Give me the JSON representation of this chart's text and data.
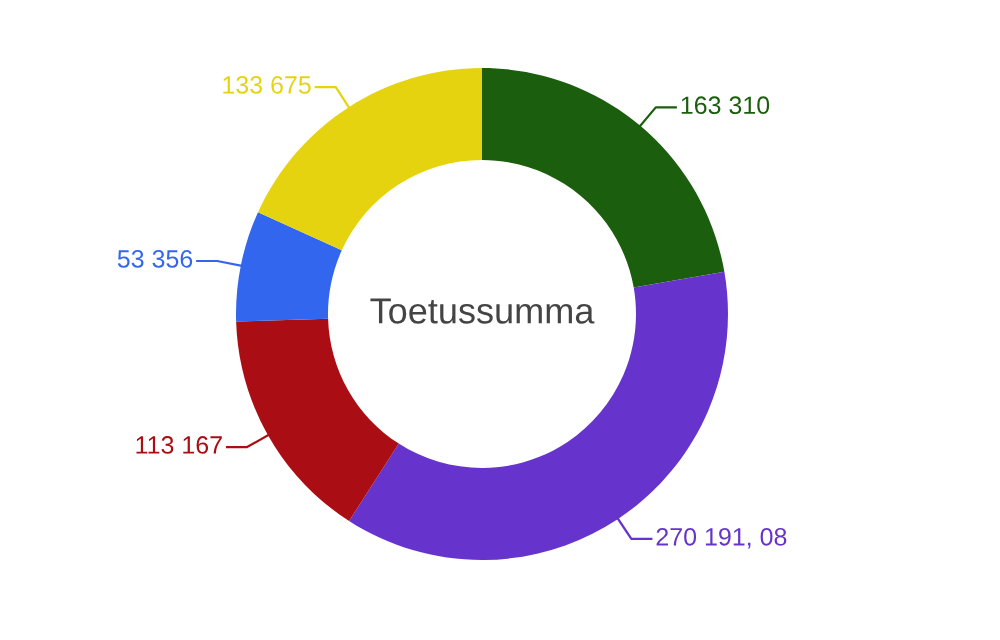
{
  "chart_data": {
    "type": "donut",
    "title": "Toetussumma",
    "categories": [
      null,
      null,
      null,
      null,
      null
    ],
    "values": [
      163310,
      270191.08,
      113167,
      53356,
      133675
    ],
    "value_labels": [
      "163 310",
      "270 191, 08",
      "113 167",
      "53 356",
      "133 675"
    ],
    "colors": [
      "#1a5e0e",
      "#6633cc",
      "#aa0e14",
      "#3366ee",
      "#e6d30f"
    ]
  }
}
